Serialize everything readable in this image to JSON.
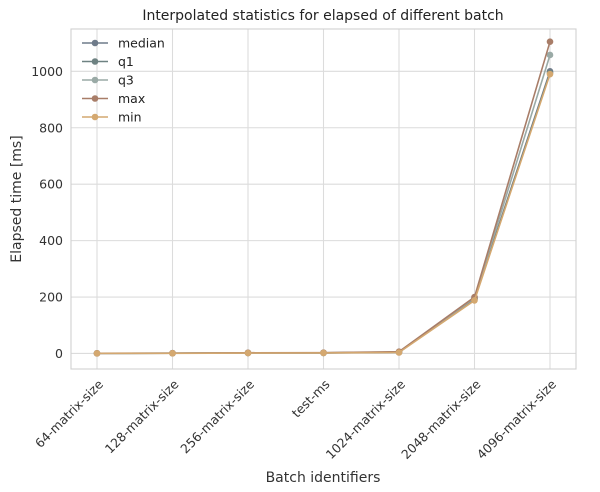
{
  "chart_data": {
    "type": "line",
    "title": "Interpolated statistics for elapsed of different batch",
    "xlabel": "Batch identifiers",
    "ylabel": "Elapsed time [ms]",
    "categories": [
      "64-matrix-size",
      "128-matrix-size",
      "256-matrix-size",
      "test-ms",
      "1024-matrix-size",
      "2048-matrix-size",
      "4096-matrix-size"
    ],
    "ylim": [
      -55,
      1150
    ],
    "yticks": [
      0,
      200,
      400,
      600,
      800,
      1000
    ],
    "grid": true,
    "legend_position": "top-left",
    "series": [
      {
        "name": "median",
        "color": "#6f7b8a",
        "values": [
          0.5,
          0.9,
          2.0,
          2.2,
          4.5,
          195,
          1000
        ]
      },
      {
        "name": "q1",
        "color": "#6e8282",
        "values": [
          0.5,
          0.8,
          1.9,
          2.0,
          4.2,
          193,
          995
        ]
      },
      {
        "name": "q3",
        "color": "#9aaaa6",
        "values": [
          0.6,
          1.0,
          2.2,
          2.4,
          5.0,
          197,
          1058
        ]
      },
      {
        "name": "max",
        "color": "#a87d68",
        "values": [
          0.7,
          1.2,
          2.6,
          3.0,
          6.5,
          200,
          1105
        ]
      },
      {
        "name": "min",
        "color": "#d4a870",
        "values": [
          0.4,
          0.7,
          1.6,
          1.8,
          3.5,
          188,
          990
        ]
      }
    ]
  }
}
